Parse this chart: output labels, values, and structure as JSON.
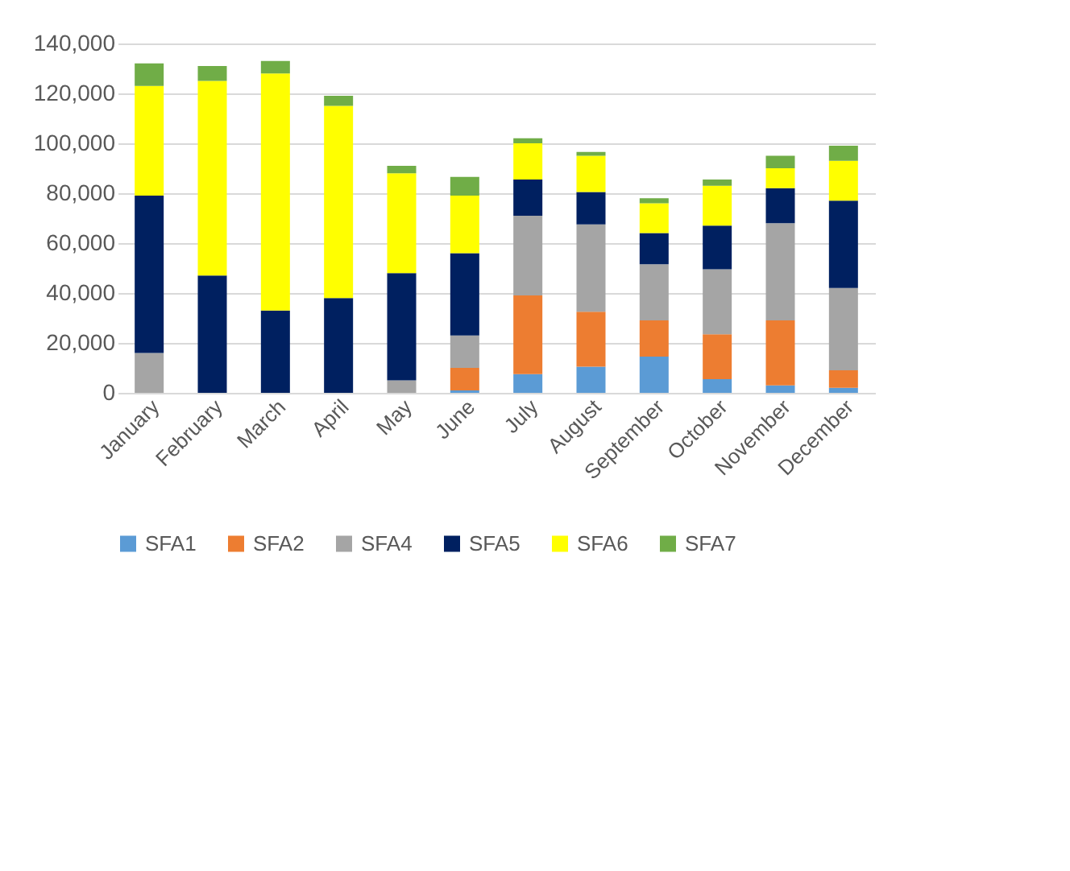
{
  "chart_data": {
    "type": "bar",
    "stacked": true,
    "categories": [
      "January",
      "February",
      "March",
      "April",
      "May",
      "June",
      "July",
      "August",
      "September",
      "October",
      "November",
      "December"
    ],
    "series": [
      {
        "name": "SFA1",
        "color": "#5b9bd5",
        "values": [
          0,
          0,
          0,
          0,
          0,
          1000,
          7500,
          10500,
          14500,
          5500,
          3000,
          2000
        ]
      },
      {
        "name": "SFA2",
        "color": "#ed7d31",
        "values": [
          0,
          0,
          0,
          0,
          0,
          9000,
          31500,
          22000,
          14500,
          18000,
          26000,
          7000
        ]
      },
      {
        "name": "SFA4",
        "color": "#a5a5a5",
        "values": [
          16000,
          0,
          0,
          0,
          5000,
          13000,
          32000,
          35000,
          22500,
          26000,
          39000,
          33000
        ]
      },
      {
        "name": "SFA5",
        "color": "#002060",
        "values": [
          63000,
          47000,
          33000,
          38000,
          43000,
          33000,
          14500,
          13000,
          12500,
          17500,
          14000,
          35000
        ]
      },
      {
        "name": "SFA6",
        "color": "#ffff00",
        "values": [
          44000,
          78000,
          95000,
          77000,
          40000,
          23000,
          14500,
          14500,
          12000,
          16000,
          8000,
          16000
        ]
      },
      {
        "name": "SFA7",
        "color": "#70ad47",
        "values": [
          9000,
          6000,
          5000,
          4000,
          3000,
          7500,
          2000,
          1500,
          2000,
          2500,
          5000,
          6000
        ]
      }
    ],
    "ylim": [
      0,
      140000
    ],
    "yticks": [
      0,
      {
        "value": 20000,
        "label": "20,000"
      },
      {
        "value": 40000,
        "label": "40,000"
      },
      {
        "value": 60000,
        "label": "60,000"
      },
      {
        "value": 80000,
        "label": "80,000"
      },
      {
        "value": 100000,
        "label": "100,000"
      },
      {
        "value": 120000,
        "label": "120,000"
      },
      {
        "value": 140000,
        "label": "140,000"
      }
    ],
    "grid": "y",
    "legend": "bottom"
  }
}
